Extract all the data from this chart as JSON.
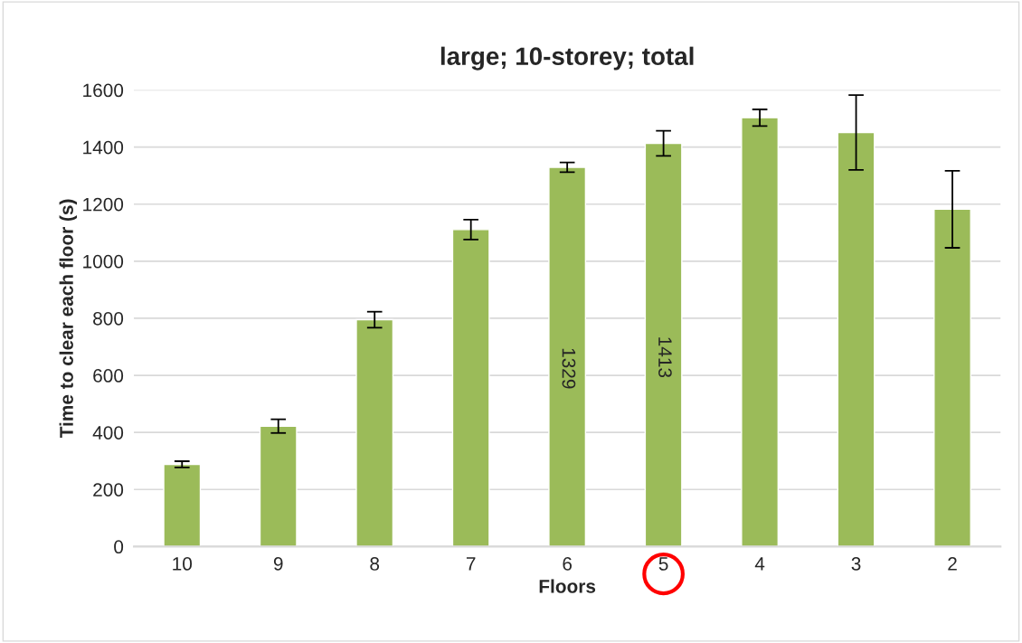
{
  "chart_data": {
    "type": "bar",
    "title": "large; 10-storey; total",
    "xlabel": "Floors",
    "ylabel": "Time to clear each floor (s)",
    "categories": [
      "10",
      "9",
      "8",
      "7",
      "6",
      "5",
      "4",
      "3",
      "2"
    ],
    "values": [
      288,
      422,
      795,
      1111,
      1329,
      1413,
      1503,
      1451,
      1182
    ],
    "errors": [
      11,
      24,
      28,
      35,
      17,
      44,
      29,
      131,
      135
    ],
    "value_labels": [
      null,
      null,
      null,
      null,
      "1329",
      "1413",
      null,
      null,
      null
    ],
    "color": "#9bbb59",
    "ylim": [
      0,
      1600
    ],
    "yticks": [
      0,
      200,
      400,
      600,
      800,
      1000,
      1200,
      1400,
      1600
    ],
    "grid": "y",
    "legend": false
  }
}
